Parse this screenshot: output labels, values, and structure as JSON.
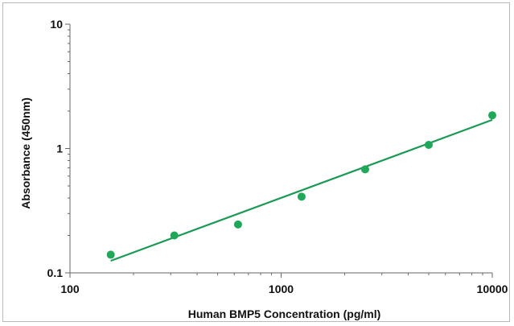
{
  "chart_data": {
    "type": "scatter",
    "title": "",
    "xlabel": "Human BMP5 Concentration (pg/ml)",
    "ylabel": "Absorbance (450nm)",
    "xscale": "log",
    "yscale": "log",
    "xlim": [
      100,
      10000
    ],
    "ylim": [
      0.1,
      10
    ],
    "x_ticks": [
      100,
      1000,
      10000
    ],
    "x_tick_labels": [
      "100",
      "1000",
      "10000"
    ],
    "y_ticks": [
      0.1,
      1,
      10
    ],
    "y_tick_labels": [
      "0.1",
      "1",
      "10"
    ],
    "grid": false,
    "legend": "none",
    "points": {
      "x": [
        156,
        312,
        625,
        1250,
        2500,
        5000,
        10000
      ],
      "y": [
        0.14,
        0.2,
        0.245,
        0.41,
        0.68,
        1.07,
        1.85
      ]
    },
    "fit_line": {
      "type": "power",
      "x": [
        156,
        10000
      ],
      "y": [
        0.125,
        1.7
      ]
    },
    "colors": {
      "points": "#1fa85a",
      "fit_line": "#1a9a55",
      "axis": "#666666"
    }
  }
}
